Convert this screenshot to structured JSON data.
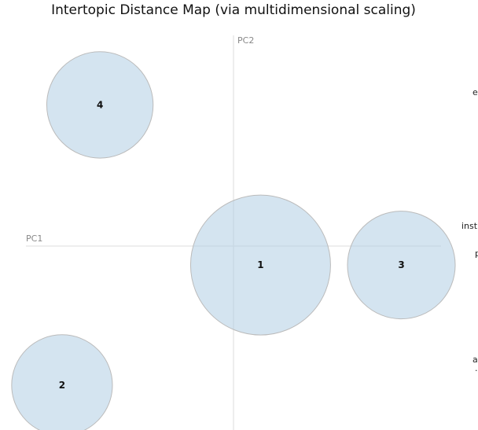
{
  "chart_data": {
    "type": "scatter",
    "title": "Intertopic Distance Map (via multidimensional scaling)",
    "xlabel": "PC1",
    "ylabel": "PC2",
    "xlim": [
      -1.15,
      1.15
    ],
    "ylim": [
      -1.0,
      1.0
    ],
    "grid": false,
    "topics": [
      {
        "label": "1",
        "x": 0.15,
        "y": -0.09,
        "size": 1.0
      },
      {
        "label": "2",
        "x": -0.95,
        "y": -0.66,
        "size": 0.72
      },
      {
        "label": "3",
        "x": 0.93,
        "y": -0.09,
        "size": 0.77
      },
      {
        "label": "4",
        "x": -0.74,
        "y": 0.67,
        "size": 0.76
      }
    ],
    "edge_labels": [
      "e",
      "inst",
      "p",
      "a",
      "·"
    ]
  }
}
